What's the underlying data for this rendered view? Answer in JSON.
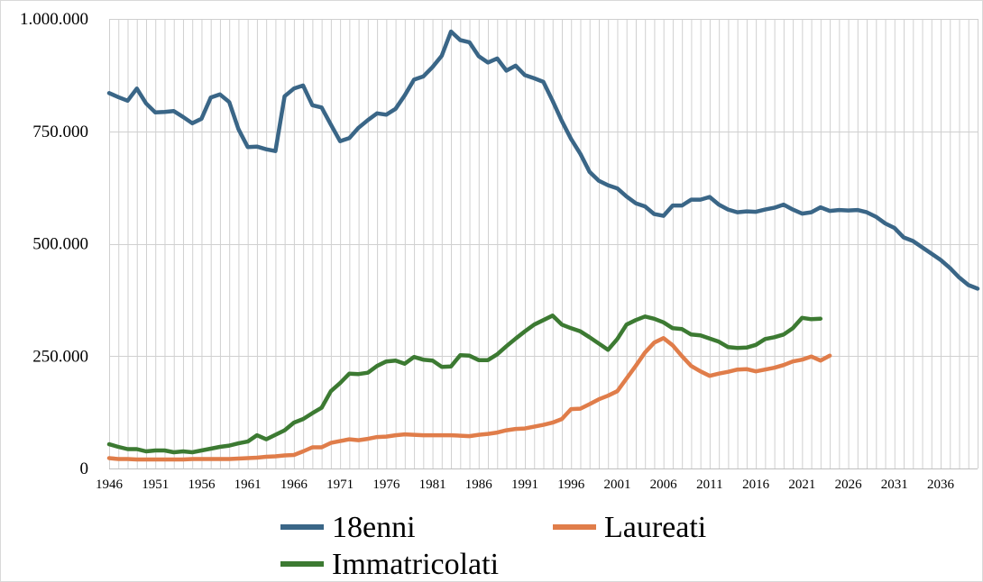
{
  "chart_data": {
    "type": "line",
    "title": "",
    "xlabel": "",
    "ylabel": "",
    "xlim": [
      1946,
      2040
    ],
    "ylim": [
      0,
      1000000
    ],
    "y_ticks": [
      0,
      250000,
      500000,
      750000,
      1000000
    ],
    "y_tick_labels": [
      "0",
      "250.000",
      "500.000",
      "750.000",
      "1.000.000"
    ],
    "x_tick_labels": [
      "1946",
      "1951",
      "1956",
      "1961",
      "1966",
      "1971",
      "1976",
      "1981",
      "1986",
      "1991",
      "1996",
      "2001",
      "2006",
      "2011",
      "2016",
      "2021",
      "2026",
      "2031",
      "2036"
    ],
    "grid": "vertical lines each year",
    "legend_position": "bottom",
    "series": [
      {
        "name": "18enni",
        "color": "#3a6687",
        "x_start": 1946,
        "values": [
          835000,
          826000,
          818000,
          845000,
          812000,
          792000,
          793000,
          795000,
          782000,
          768000,
          778000,
          825000,
          832000,
          815000,
          755000,
          715000,
          716000,
          710000,
          706000,
          828000,
          845000,
          852000,
          808000,
          803000,
          765000,
          728000,
          735000,
          758000,
          775000,
          790000,
          787000,
          800000,
          830000,
          865000,
          872000,
          893000,
          918000,
          972000,
          953000,
          948000,
          917000,
          903000,
          912000,
          885000,
          896000,
          875000,
          868000,
          860000,
          818000,
          773000,
          733000,
          700000,
          660000,
          640000,
          630000,
          623000,
          605000,
          590000,
          583000,
          566000,
          562000,
          585000,
          585000,
          598000,
          598000,
          604000,
          587000,
          576000,
          570000,
          572000,
          571000,
          576000,
          580000,
          587000,
          576000,
          567000,
          570000,
          581000,
          573000,
          575000,
          574000,
          575000,
          570000,
          560000,
          545000,
          535000,
          514000,
          506000,
          492000,
          478000,
          464000,
          446000,
          425000,
          408000,
          400000
        ]
      },
      {
        "name": "Laureati",
        "color": "#e07d4a",
        "x_start": 1946,
        "values": [
          23000,
          21000,
          21000,
          20000,
          20000,
          20000,
          20000,
          20000,
          20000,
          21000,
          21000,
          21000,
          21000,
          21000,
          22000,
          23000,
          24000,
          26000,
          27000,
          29000,
          30000,
          38000,
          47000,
          47000,
          57000,
          61000,
          65000,
          63000,
          66000,
          70000,
          71000,
          74000,
          76000,
          75000,
          74000,
          74000,
          74000,
          74000,
          73000,
          72000,
          75000,
          77000,
          80000,
          85000,
          88000,
          89000,
          93000,
          97000,
          102000,
          110000,
          132000,
          133000,
          143000,
          154000,
          162000,
          172000,
          200000,
          228000,
          258000,
          280000,
          290000,
          274000,
          250000,
          228000,
          216000,
          206000,
          211000,
          215000,
          220000,
          221000,
          216000,
          220000,
          224000,
          230000,
          238000,
          242000,
          249000,
          240000,
          251000
        ]
      },
      {
        "name": "Immatricolati",
        "color": "#3c7a32",
        "x_start": 1946,
        "values": [
          54000,
          48000,
          43000,
          43000,
          38000,
          40000,
          40000,
          36000,
          38000,
          36000,
          40000,
          44000,
          48000,
          51000,
          56000,
          60000,
          74000,
          65000,
          75000,
          85000,
          102000,
          110000,
          123000,
          135000,
          172000,
          190000,
          211000,
          210000,
          213000,
          228000,
          238000,
          240000,
          233000,
          248000,
          242000,
          240000,
          226000,
          227000,
          252000,
          251000,
          241000,
          241000,
          254000,
          272000,
          289000,
          305000,
          320000,
          330000,
          340000,
          320000,
          312000,
          305000,
          292000,
          278000,
          264000,
          288000,
          320000,
          330000,
          338000,
          333000,
          325000,
          312000,
          310000,
          298000,
          296000,
          289000,
          282000,
          270000,
          268000,
          269000,
          275000,
          288000,
          292000,
          298000,
          312000,
          335000,
          332000,
          333000
        ]
      }
    ]
  }
}
